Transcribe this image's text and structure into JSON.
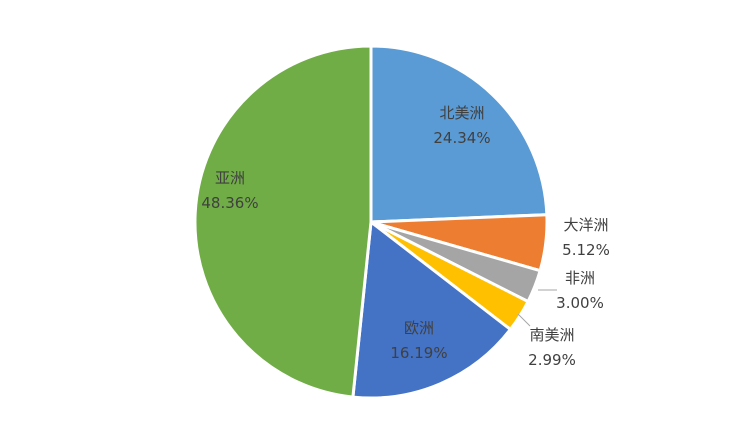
{
  "chart_data": {
    "type": "pie",
    "title": "",
    "legend": "none",
    "start_angle_deg": 0,
    "direction": "clockwise",
    "slices": [
      {
        "name": "北美洲",
        "value": 24.34,
        "label": "24.34%",
        "color": "#5B9BD5"
      },
      {
        "name": "大洋洲",
        "value": 5.12,
        "label": "5.12%",
        "color": "#ED7D31"
      },
      {
        "name": "非洲",
        "value": 3.0,
        "label": "3.00%",
        "color": "#A5A5A5"
      },
      {
        "name": "南美洲",
        "value": 2.99,
        "label": "2.99%",
        "color": "#FFC000"
      },
      {
        "name": "欧洲",
        "value": 16.19,
        "label": "16.19%",
        "color": "#4472C4"
      },
      {
        "name": "亚洲",
        "value": 48.36,
        "label": "48.36%",
        "color": "#70AD47"
      }
    ]
  }
}
